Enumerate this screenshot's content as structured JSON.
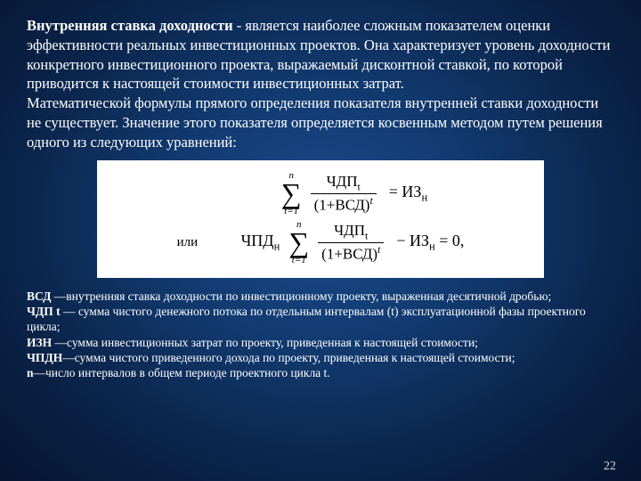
{
  "main": {
    "title_bold": "Внутренняя ставка доходности",
    "title_rest": " - является наиболее сложным показателем оценки эффективности реальных инвестиционных проектов. Она характеризует уровень доходности конкретного инвестиционного проекта, выражаемый дисконтной ставкой, по которой приводится к настоящей стоимости инвестиционных затрат.",
    "para2": "Математической формулы прямого определения показателя внутренней ставки доходности не существует. Значение этого показателя определяется косвенным методом путем решения одного из следующих уравнений:"
  },
  "formula": {
    "sigma_top": "n",
    "sigma_bot": "t=1",
    "frac1_num": "ЧДПt",
    "frac1_den": "(1+ВСД)",
    "eq1_rhs": "= ИЗн",
    "ili": "или",
    "label2": "ЧПДн",
    "frac2_num": "ЧДПt",
    "frac2_den": "(1+ВСД)",
    "eq2_rhs": "− ИЗн = 0,",
    "sup_t": "t"
  },
  "defs": {
    "d1b": "ВСД",
    "d1": " —внутренняя ставка доходности по инвестиционному проекту, выраженная десятичной дробью;",
    "d2b": "ЧДП t",
    "d2": " — сумма чистого денежного потока по отдельным интервалам (t) эксплуатационной фазы проектного цикла;",
    "d3b": "ИЗН",
    "d3": " —сумма инвестиционных затрат по проекту, приведенная к настоящей стоимости;",
    "d4b": "ЧПДН",
    "d4": "—сумма чистого приведенного дохода по проекту, приведенная к настоящей стоимости;",
    "d5b": "n",
    "d5": "—число интервалов в общем периоде проектного цикла t."
  },
  "page": "22"
}
